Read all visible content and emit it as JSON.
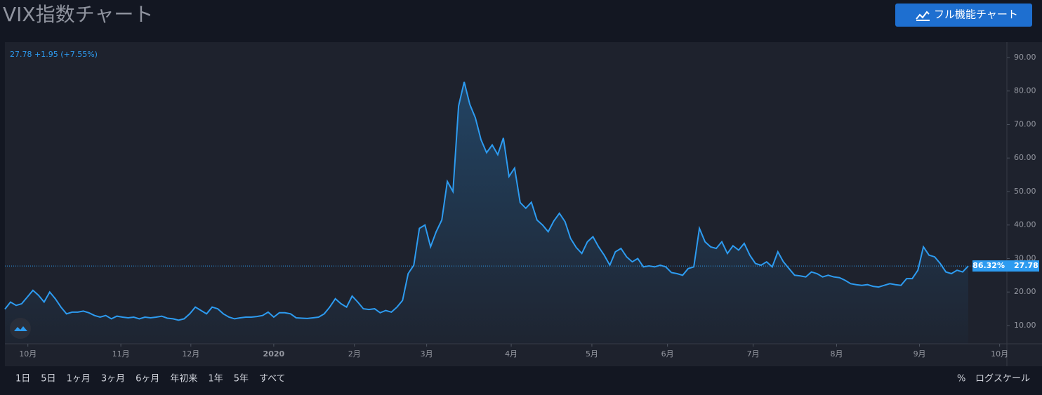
{
  "header": {
    "title": "VIX指数チャート",
    "button": "フル機能チャート"
  },
  "chart_data": {
    "type": "line",
    "color": "#2d9bf0",
    "quote": {
      "last": "27.78",
      "change": "+1.95",
      "change_pct": "(+7.55%)"
    },
    "last_label": "27.78",
    "percent_label": "86.32%",
    "values": [
      14.9,
      17.0,
      16.0,
      16.5,
      18.5,
      20.5,
      19.0,
      17.0,
      20.0,
      18.0,
      15.5,
      13.5,
      14.0,
      14.0,
      14.3,
      13.8,
      13.0,
      12.5,
      13.0,
      12.0,
      12.8,
      12.5,
      12.3,
      12.5,
      12.0,
      12.5,
      12.3,
      12.5,
      12.8,
      12.2,
      12.0,
      11.6,
      12.0,
      13.5,
      15.5,
      14.5,
      13.5,
      15.5,
      15.0,
      13.5,
      12.5,
      12.0,
      12.3,
      12.5,
      12.5,
      12.7,
      13.0,
      14.0,
      12.5,
      13.8,
      13.8,
      13.5,
      12.3,
      12.2,
      12.1,
      12.3,
      12.5,
      13.5,
      15.5,
      18.0,
      16.5,
      15.5,
      18.8,
      17.0,
      15.0,
      14.8,
      15.0,
      13.8,
      14.5,
      14.0,
      15.5,
      17.5,
      25.5,
      28.0,
      39.0,
      40.0,
      33.5,
      38.0,
      41.5,
      53.0,
      50.0,
      75.5,
      82.7,
      76.0,
      72.0,
      65.5,
      61.6,
      63.9,
      61.0,
      66.0,
      54.5,
      57.0,
      46.7,
      45.0,
      46.8,
      41.5,
      40.0,
      38.0,
      41.2,
      43.5,
      41.0,
      36.0,
      33.3,
      31.5,
      35.0,
      36.5,
      33.5,
      31.0,
      28.0,
      32.0,
      33.0,
      30.5,
      29.0,
      30.0,
      27.5,
      27.8,
      27.5,
      28.0,
      27.5,
      25.8,
      25.5,
      25.0,
      27.0,
      27.5,
      39.0,
      35.0,
      33.5,
      33.0,
      35.0,
      31.5,
      33.8,
      32.5,
      34.5,
      31.0,
      28.5,
      28.0,
      29.0,
      27.5,
      32.0,
      29.0,
      27.0,
      25.0,
      24.8,
      24.5,
      26.0,
      25.5,
      24.5,
      25.0,
      24.5,
      24.3,
      23.5,
      22.5,
      22.2,
      22.0,
      22.2,
      21.7,
      21.5,
      22.0,
      22.5,
      22.2,
      22.0,
      24.0,
      24.0,
      26.5,
      33.5,
      31.0,
      30.5,
      28.5,
      26.0,
      25.5,
      26.5,
      26.0,
      27.78
    ],
    "xlim": [
      0,
      178.9
    ],
    "xticks": [
      {
        "value": 4.1,
        "label": "10月"
      },
      {
        "value": 20.7,
        "label": "11月"
      },
      {
        "value": 33.2,
        "label": "12月"
      },
      {
        "value": 48.0,
        "label": "2020"
      },
      {
        "value": 62.4,
        "label": "2月"
      },
      {
        "value": 75.3,
        "label": "3月"
      },
      {
        "value": 90.4,
        "label": "4月"
      },
      {
        "value": 104.8,
        "label": "5月"
      },
      {
        "value": 118.3,
        "label": "6月"
      },
      {
        "value": 133.6,
        "label": "7月"
      },
      {
        "value": 148.5,
        "label": "8月"
      },
      {
        "value": 163.3,
        "label": "9月"
      },
      {
        "value": 177.6,
        "label": "10月"
      }
    ],
    "ylim": [
      4.55,
      94.6
    ],
    "yticks": [
      {
        "value": 10,
        "label": "10.00"
      },
      {
        "value": 20,
        "label": "20.00"
      },
      {
        "value": 30,
        "label": "30.00"
      },
      {
        "value": 40,
        "label": "40.00"
      },
      {
        "value": 50,
        "label": "50.00"
      },
      {
        "value": 60,
        "label": "60.00"
      },
      {
        "value": 70,
        "label": "70.00"
      },
      {
        "value": 80,
        "label": "80.00"
      },
      {
        "value": 90,
        "label": "90.00"
      }
    ]
  },
  "footer": {
    "ranges": [
      "1日",
      "5日",
      "1ヶ月",
      "3ヶ月",
      "6ヶ月",
      "年初来",
      "1年",
      "5年",
      "すべて"
    ],
    "percent": "%",
    "log": "ログスケール"
  }
}
